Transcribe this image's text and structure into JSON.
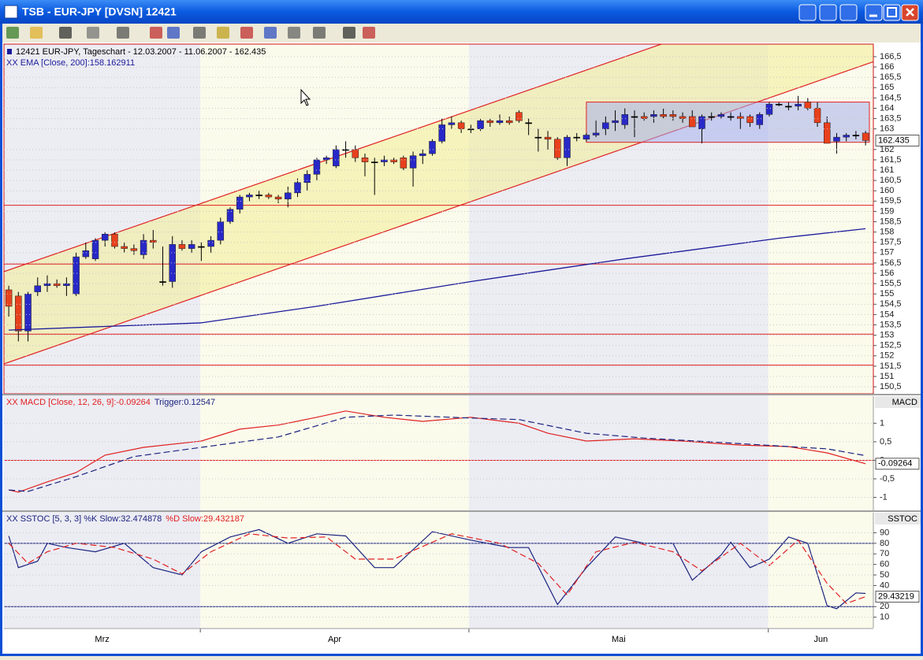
{
  "window": {
    "title": "TSB - EUR-JPY [DVSN] 12421"
  },
  "chart_data": [
    {
      "type": "candlestick",
      "legend": "12421 EUR-JPY, Tageschart - 12.03.2007 - 11.06.2007 - 162.435",
      "colors": {
        "up": "#2828c8",
        "down": "#e8401c",
        "doji": "#000000"
      },
      "xlim": [
        -0.5,
        89.4
      ],
      "ylim": [
        150.16,
        167.11
      ],
      "yticks": [
        {
          "value": 150.5,
          "label": "150,5"
        },
        151,
        {
          "value": 151.5,
          "label": "151,5"
        },
        152,
        {
          "value": 152.5,
          "label": "152,5"
        },
        153,
        {
          "value": 153.5,
          "label": "153,5"
        },
        154,
        {
          "value": 154.5,
          "label": "154,5"
        },
        155,
        {
          "value": 155.5,
          "label": "155,5"
        },
        156,
        {
          "value": 156.5,
          "label": "156,5"
        },
        157,
        {
          "value": 157.5,
          "label": "157,5"
        },
        158,
        {
          "value": 158.5,
          "label": "158,5"
        },
        159,
        {
          "value": 159.5,
          "label": "159,5"
        },
        160,
        {
          "value": 160.5,
          "label": "160,5"
        },
        161,
        {
          "value": 161.5,
          "label": "161,5"
        },
        162,
        163,
        {
          "value": 163.5,
          "label": "163,5"
        },
        164,
        {
          "value": 164.5,
          "label": "164,5"
        },
        165,
        {
          "value": 165.5,
          "label": "165,5"
        },
        166,
        {
          "value": 166.5,
          "label": "166,5"
        }
      ],
      "grid": true,
      "last_value": 162.435,
      "month_starts": [
        19.9,
        47.8,
        78.9
      ],
      "month_labels": [
        "Mrz",
        "Apr",
        "Mai",
        "Jun"
      ],
      "ohlc": [
        [
          155.2,
          155.4,
          153.9,
          154.4
        ],
        [
          154.9,
          155.1,
          152.7,
          153.2
        ],
        [
          153.2,
          155.1,
          152.7,
          155.0
        ],
        [
          155.1,
          155.8,
          154.9,
          155.4
        ],
        [
          155.4,
          155.9,
          155.1,
          155.5
        ],
        [
          155.5,
          155.7,
          155.3,
          155.4
        ],
        [
          155.4,
          155.8,
          154.9,
          155.5
        ],
        [
          155.0,
          157.0,
          154.9,
          156.8
        ],
        [
          156.8,
          157.5,
          156.7,
          157.1
        ],
        [
          156.7,
          157.7,
          156.6,
          157.6
        ],
        [
          157.6,
          158.0,
          157.3,
          157.9
        ],
        [
          157.9,
          158.0,
          157.2,
          157.3
        ],
        [
          157.3,
          157.5,
          157.0,
          157.2
        ],
        [
          157.2,
          157.4,
          156.9,
          157.1
        ],
        [
          156.9,
          157.9,
          156.7,
          157.6
        ],
        [
          157.6,
          158.1,
          157.2,
          157.5
        ],
        [
          155.6,
          157.3,
          155.4,
          155.6
        ],
        [
          155.6,
          157.8,
          155.3,
          157.4
        ],
        [
          157.4,
          157.6,
          157.1,
          157.2
        ],
        [
          157.2,
          157.6,
          157.0,
          157.4
        ],
        [
          157.3,
          157.5,
          156.6,
          157.3
        ],
        [
          157.3,
          157.8,
          157.0,
          157.6
        ],
        [
          157.6,
          158.7,
          157.4,
          158.5
        ],
        [
          158.5,
          159.2,
          158.4,
          159.1
        ],
        [
          159.1,
          159.8,
          158.9,
          159.7
        ],
        [
          159.7,
          159.9,
          159.5,
          159.8
        ],
        [
          159.8,
          160.0,
          159.6,
          159.8
        ],
        [
          159.8,
          159.9,
          159.6,
          159.7
        ],
        [
          159.7,
          159.8,
          159.4,
          159.6
        ],
        [
          159.6,
          160.2,
          159.2,
          159.9
        ],
        [
          159.9,
          160.6,
          159.7,
          160.4
        ],
        [
          160.4,
          161.0,
          160.0,
          160.8
        ],
        [
          160.8,
          161.6,
          160.5,
          161.5
        ],
        [
          161.5,
          161.7,
          161.3,
          161.6
        ],
        [
          161.2,
          162.2,
          161.1,
          162.0
        ],
        [
          162.0,
          162.4,
          161.6,
          162.0
        ],
        [
          162.0,
          162.2,
          161.4,
          161.6
        ],
        [
          161.6,
          161.8,
          160.7,
          161.4
        ],
        [
          161.4,
          161.6,
          159.8,
          161.4
        ],
        [
          161.4,
          161.7,
          161.2,
          161.5
        ],
        [
          161.5,
          161.6,
          161.3,
          161.4
        ],
        [
          161.6,
          161.7,
          161.0,
          161.1
        ],
        [
          161.1,
          161.9,
          160.2,
          161.7
        ],
        [
          161.7,
          162.0,
          161.3,
          161.8
        ],
        [
          161.8,
          162.5,
          161.7,
          162.4
        ],
        [
          162.4,
          163.5,
          162.3,
          163.2
        ],
        [
          163.2,
          163.6,
          163.0,
          163.3
        ],
        [
          163.3,
          163.4,
          162.8,
          163.0
        ],
        [
          163.0,
          163.2,
          162.8,
          163.0
        ],
        [
          163.0,
          163.5,
          162.9,
          163.4
        ],
        [
          163.4,
          163.5,
          163.1,
          163.3
        ],
        [
          163.3,
          163.7,
          163.2,
          163.4
        ],
        [
          163.4,
          163.6,
          163.2,
          163.3
        ],
        [
          163.8,
          163.9,
          163.3,
          163.4
        ],
        [
          163.3,
          163.5,
          162.7,
          163.3
        ],
        [
          162.6,
          163.0,
          161.9,
          162.6
        ],
        [
          162.6,
          162.9,
          162.0,
          162.5
        ],
        [
          162.5,
          162.6,
          161.5,
          161.6
        ],
        [
          161.6,
          162.7,
          161.2,
          162.6
        ],
        [
          162.6,
          162.8,
          162.4,
          162.6
        ],
        [
          162.5,
          162.8,
          162.4,
          162.7
        ],
        [
          162.7,
          163.4,
          162.6,
          162.8
        ],
        [
          163.0,
          163.6,
          162.7,
          163.3
        ],
        [
          163.3,
          163.9,
          162.9,
          163.4
        ],
        [
          163.2,
          164.0,
          163.0,
          163.7
        ],
        [
          163.6,
          163.9,
          162.6,
          163.6
        ],
        [
          163.6,
          163.8,
          163.4,
          163.5
        ],
        [
          163.6,
          163.9,
          163.3,
          163.7
        ],
        [
          163.7,
          164.0,
          163.5,
          163.6
        ],
        [
          163.7,
          163.9,
          163.4,
          163.6
        ],
        [
          163.6,
          163.8,
          163.3,
          163.5
        ],
        [
          163.6,
          163.9,
          163.1,
          163.1
        ],
        [
          163.0,
          163.7,
          162.3,
          163.6
        ],
        [
          163.6,
          163.8,
          163.4,
          163.6
        ],
        [
          163.6,
          163.8,
          163.5,
          163.7
        ],
        [
          163.6,
          163.8,
          163.4,
          163.6
        ],
        [
          163.6,
          163.8,
          163.0,
          163.5
        ],
        [
          163.6,
          163.7,
          163.1,
          163.3
        ],
        [
          163.2,
          163.8,
          163.0,
          163.7
        ],
        [
          163.7,
          164.3,
          163.6,
          164.2
        ],
        [
          164.2,
          164.3,
          164.1,
          164.2
        ],
        [
          164.1,
          164.3,
          163.9,
          164.1
        ],
        [
          164.1,
          164.6,
          163.9,
          164.2
        ],
        [
          164.3,
          164.5,
          163.9,
          164.0
        ],
        [
          164.0,
          164.3,
          163.1,
          163.3
        ],
        [
          163.3,
          163.6,
          162.3,
          162.3
        ],
        [
          162.4,
          162.8,
          161.8,
          162.6
        ],
        [
          162.6,
          162.8,
          162.4,
          162.7
        ],
        [
          162.7,
          162.9,
          162.5,
          162.7
        ],
        [
          162.8,
          162.9,
          162.2,
          162.435
        ]
      ],
      "ema": {
        "name": "XX EMA [Close, 200]:158.162911",
        "color": "#1a1a9a",
        "x": [
          0,
          20,
          32,
          48,
          64,
          80,
          89
        ],
        "values": [
          153.25,
          153.6,
          154.4,
          155.6,
          156.7,
          157.7,
          158.162911
        ]
      },
      "channel": {
        "color": "#e02020",
        "fill": "#f4ee9c",
        "upper": {
          "x": [
            -0.5,
            67.55
          ],
          "values": [
            156.08,
            167.07
          ]
        },
        "lower": {
          "x": [
            -0.5,
            89.4
          ],
          "values": [
            151.61,
            166.19
          ]
        }
      },
      "hlines": [
        159.3,
        156.45,
        153.05,
        151.55
      ],
      "box": {
        "x": [
          60,
          89.4
        ],
        "y": [
          162.35,
          164.3
        ],
        "fill": "#a8b0ec"
      }
    },
    {
      "type": "line",
      "title": "MACD",
      "xlim": [
        -0.5,
        89.4
      ],
      "ylim": [
        -1.35,
        1.73
      ],
      "yticks": [
        1,
        {
          "value": 0.5,
          "label": "0,5"
        },
        0,
        {
          "value": -0.5,
          "label": "-0,5"
        },
        -1
      ],
      "grid": true,
      "hlines": [
        0
      ],
      "last_value": -0.09264,
      "series": [
        {
          "name": "XX MACD [Close, 12, 26, 9]:-0.09264",
          "color": "#e02020",
          "x": [
            0,
            1,
            4,
            7,
            10,
            14,
            20,
            24,
            28,
            32,
            35,
            39,
            43,
            48,
            53,
            56,
            60,
            65,
            70,
            76,
            81,
            85,
            89
          ],
          "values": [
            -0.8,
            -0.86,
            -0.58,
            -0.33,
            0.14,
            0.35,
            0.52,
            0.84,
            0.95,
            1.16,
            1.33,
            1.16,
            1.05,
            1.16,
            1.0,
            0.73,
            0.52,
            0.58,
            0.52,
            0.41,
            0.37,
            0.2,
            -0.09264
          ]
        },
        {
          "name": "Trigger:0.12547",
          "color": "#1a237e",
          "dash": true,
          "x": [
            0,
            2,
            7,
            13,
            20,
            28,
            35,
            40,
            48,
            53,
            60,
            66,
            74,
            81,
            85,
            89
          ],
          "values": [
            -0.8,
            -0.84,
            -0.44,
            0.1,
            0.35,
            0.63,
            1.16,
            1.22,
            1.14,
            1.1,
            0.73,
            0.6,
            0.48,
            0.37,
            0.31,
            0.12547
          ]
        }
      ]
    },
    {
      "type": "line",
      "title": "SSTOC",
      "xlim": [
        -0.5,
        89.4
      ],
      "ylim": [
        0,
        109
      ],
      "yticks": [
        90,
        80,
        70,
        60,
        50,
        40,
        20,
        10
      ],
      "grid": true,
      "hlines": [
        80,
        20
      ],
      "hline_color": "#1a237e",
      "last_value": {
        "value": 29.432187,
        "label": "29.43219"
      },
      "series": [
        {
          "name": "XX SSTOC [5, 3, 3] %K Slow:32.474878",
          "color": "#1a237e",
          "x": [
            0,
            1,
            3,
            4,
            6,
            9,
            12,
            15,
            18,
            20,
            23,
            26,
            29,
            32,
            35,
            38,
            40,
            44,
            48,
            52,
            54,
            57,
            60,
            63,
            66,
            69,
            71,
            74,
            75,
            77,
            79,
            81,
            83,
            85,
            86,
            88,
            89
          ],
          "values": [
            87,
            57,
            63,
            80,
            76,
            72,
            80,
            57,
            50,
            72,
            86,
            93,
            80,
            89,
            87,
            57,
            57,
            91,
            83,
            76,
            76,
            22,
            57,
            86,
            80,
            80,
            45,
            69,
            81,
            57,
            65,
            86,
            80,
            21,
            18,
            33,
            32.474878
          ]
        },
        {
          "name": "%D Slow:29.432187",
          "color": "#e02020",
          "dash": true,
          "x": [
            0,
            2,
            4,
            7,
            11,
            15,
            18,
            21,
            25,
            29,
            33,
            36,
            40,
            46,
            51,
            55,
            58,
            61,
            65,
            69,
            72,
            76,
            79,
            82,
            85,
            87,
            89
          ],
          "values": [
            80,
            61,
            72,
            80,
            76,
            65,
            51,
            72,
            89,
            85,
            86,
            65,
            65,
            89,
            80,
            61,
            31,
            72,
            81,
            72,
            54,
            80,
            59,
            83,
            42,
            23,
            29.432187
          ]
        }
      ]
    }
  ]
}
